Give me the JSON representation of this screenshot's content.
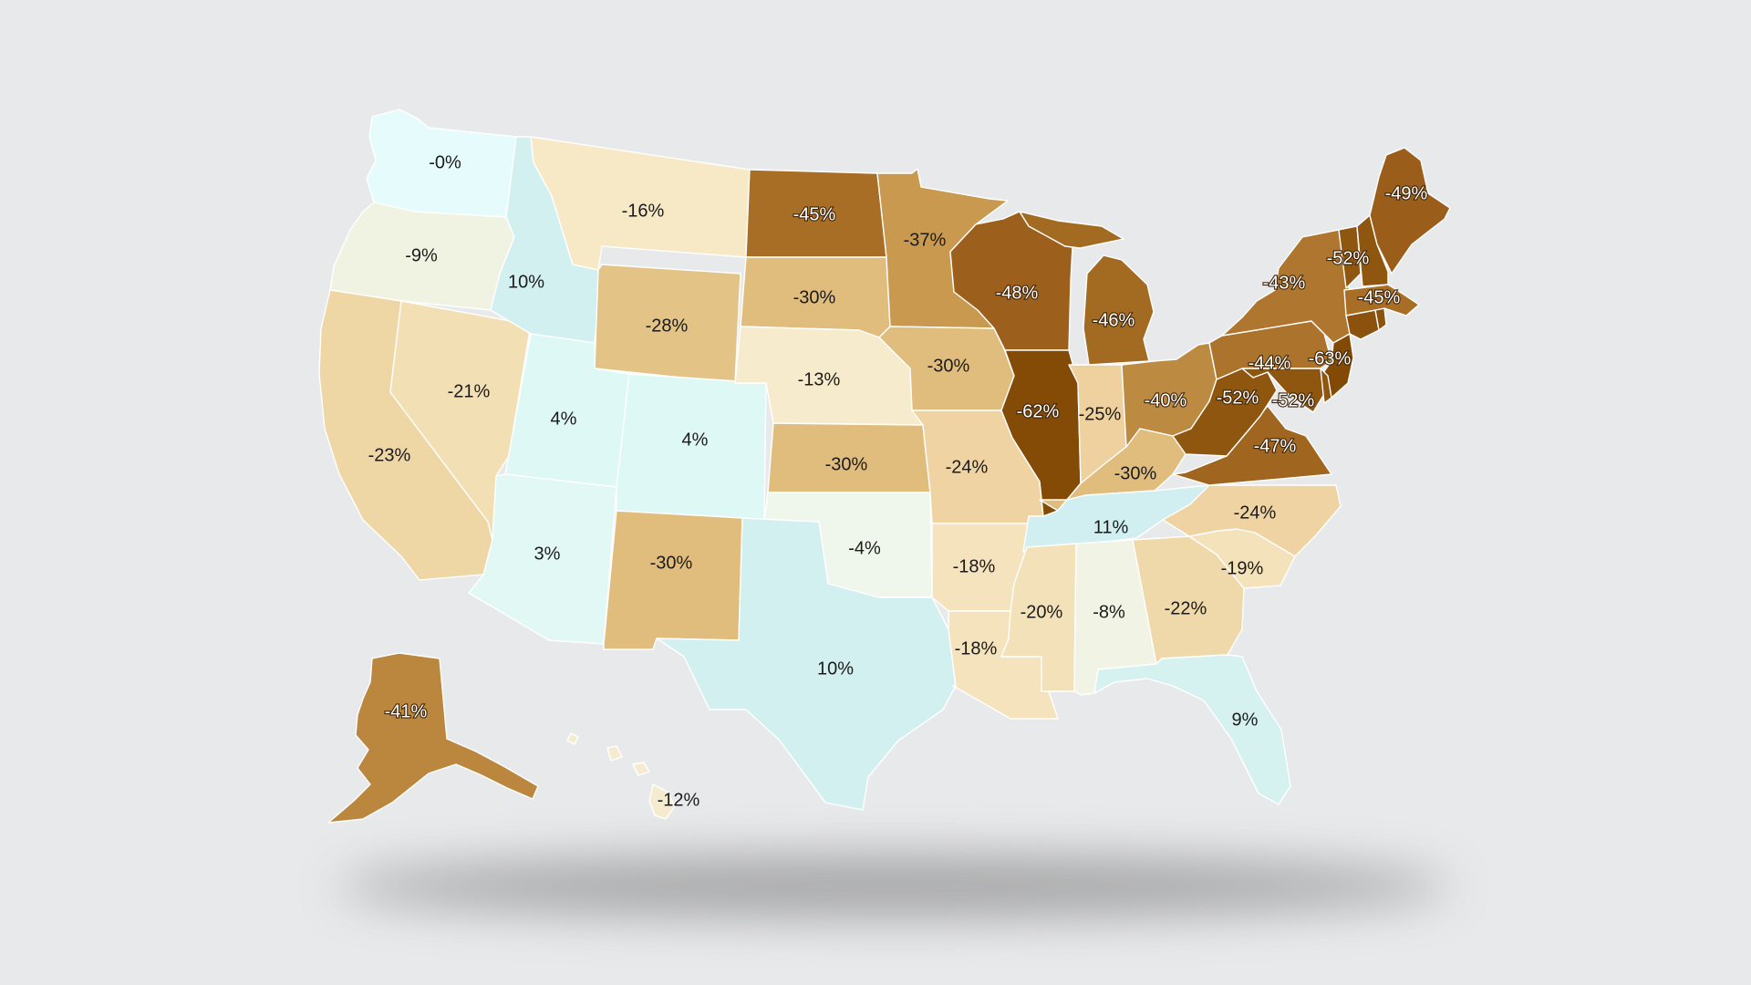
{
  "map": {
    "states": [
      {
        "name": "Washington",
        "value": "-0%",
        "color": "#e6fcfc"
      },
      {
        "name": "Oregon",
        "value": "-9%",
        "color": "#f1f3e2"
      },
      {
        "name": "California",
        "value": "-23%",
        "color": "#efd6a5"
      },
      {
        "name": "Nevada",
        "value": "-21%",
        "color": "#f2dfb4"
      },
      {
        "name": "Idaho",
        "value": "10%",
        "color": "#d3f0f0"
      },
      {
        "name": "Montana",
        "value": "-16%",
        "color": "#f7e8c6"
      },
      {
        "name": "Wyoming",
        "value": "-28%",
        "color": "#e3c386"
      },
      {
        "name": "Utah",
        "value": "4%",
        "color": "#def8f5"
      },
      {
        "name": "Colorado",
        "value": "4%",
        "color": "#def8f5"
      },
      {
        "name": "Arizona",
        "value": "3%",
        "color": "#e1f8f5"
      },
      {
        "name": "New Mexico",
        "value": "-30%",
        "color": "#e0bd7c"
      },
      {
        "name": "North Dakota",
        "value": "-45%",
        "color": "#a86e26"
      },
      {
        "name": "South Dakota",
        "value": "-30%",
        "color": "#e0bd7c"
      },
      {
        "name": "Nebraska",
        "value": "-13%",
        "color": "#f7ebcd"
      },
      {
        "name": "Kansas",
        "value": "-30%",
        "color": "#e0bd7c"
      },
      {
        "name": "Oklahoma",
        "value": "-4%",
        "color": "#eff7ec"
      },
      {
        "name": "Texas",
        "value": "10%",
        "color": "#d3f0f0"
      },
      {
        "name": "Minnesota",
        "value": "-37%",
        "color": "#c8994f"
      },
      {
        "name": "Iowa",
        "value": "-30%",
        "color": "#e0bd7c"
      },
      {
        "name": "Missouri",
        "value": "-24%",
        "color": "#efd3a2"
      },
      {
        "name": "Arkansas",
        "value": "-18%",
        "color": "#f5e3bd"
      },
      {
        "name": "Louisiana",
        "value": "-18%",
        "color": "#f5e3bd"
      },
      {
        "name": "Wisconsin",
        "value": "-48%",
        "color": "#9c5f1c"
      },
      {
        "name": "Illinois",
        "value": "-62%",
        "color": "#844b07"
      },
      {
        "name": "Michigan",
        "value": "-46%",
        "color": "#a36a22"
      },
      {
        "name": "Indiana",
        "value": "-25%",
        "color": "#eed19e"
      },
      {
        "name": "Ohio",
        "value": "-40%",
        "color": "#bd8a42"
      },
      {
        "name": "Kentucky",
        "value": "-30%",
        "color": "#e0bd7c"
      },
      {
        "name": "Tennessee",
        "value": "11%",
        "color": "#d1eff0"
      },
      {
        "name": "Mississippi",
        "value": "-20%",
        "color": "#f3e1b9"
      },
      {
        "name": "Alabama",
        "value": "-8%",
        "color": "#f1f4e4"
      },
      {
        "name": "Georgia",
        "value": "-22%",
        "color": "#efd8a9"
      },
      {
        "name": "Florida",
        "value": "9%",
        "color": "#d5f1f0"
      },
      {
        "name": "South Carolina",
        "value": "-19%",
        "color": "#f4e2bb"
      },
      {
        "name": "North Carolina",
        "value": "-24%",
        "color": "#efd3a2"
      },
      {
        "name": "Virginia",
        "value": "-47%",
        "color": "#a06620"
      },
      {
        "name": "West Virginia",
        "value": "-52%",
        "color": "#8f560f"
      },
      {
        "name": "Pennsylvania",
        "value": "-44%",
        "color": "#ab732c"
      },
      {
        "name": "New York",
        "value": "-43%",
        "color": "#af7630"
      },
      {
        "name": "New Jersey",
        "value": "-63%",
        "color": "#834a06"
      },
      {
        "name": "Maryland",
        "value": "-52%",
        "color": "#8f560f"
      },
      {
        "name": "Delaware",
        "value": "",
        "color": "#8f560f"
      },
      {
        "name": "Connecticut",
        "value": "",
        "color": "#8a520c"
      },
      {
        "name": "Rhode Island",
        "value": "",
        "color": "#8a520c"
      },
      {
        "name": "Massachusetts",
        "value": "-45%",
        "color": "#a86e26"
      },
      {
        "name": "Vermont",
        "value": "-52%",
        "color": "#8f560f"
      },
      {
        "name": "New Hampshire",
        "value": "",
        "color": "#8f560f"
      },
      {
        "name": "Maine",
        "value": "-49%",
        "color": "#9a5d1a"
      },
      {
        "name": "Alaska",
        "value": "-41%",
        "color": "#bb873e"
      },
      {
        "name": "Hawaii",
        "value": "-12%",
        "color": "#f5ecd0"
      }
    ]
  }
}
